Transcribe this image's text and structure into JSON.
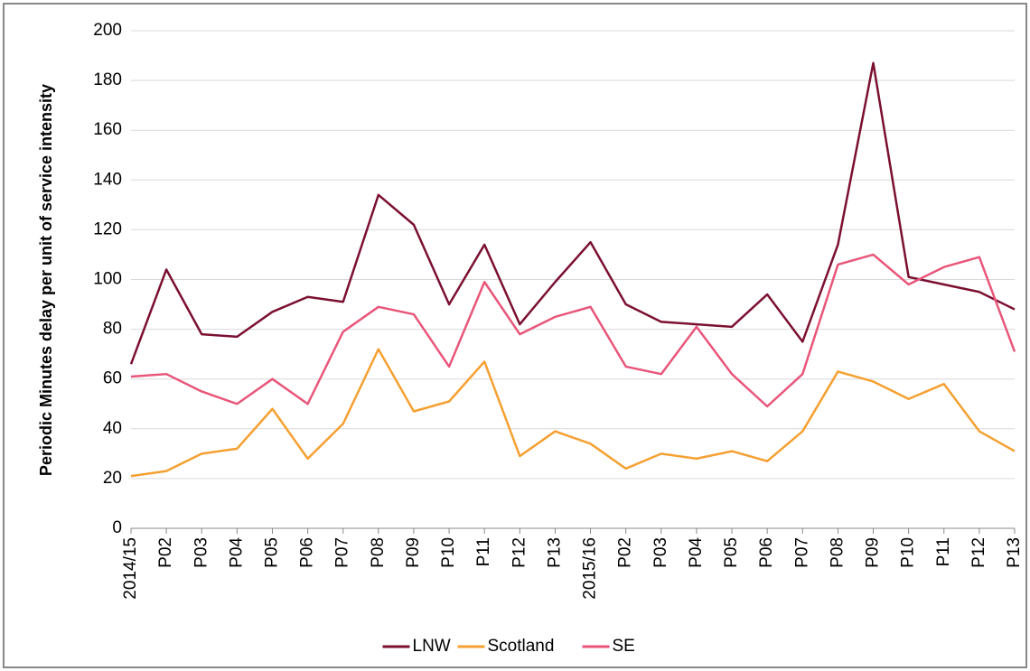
{
  "chart_data": {
    "type": "line",
    "y_label": "Periodic Minutes delay per unit of service intensity",
    "categories": [
      "2014/15",
      "P02",
      "P03",
      "P04",
      "P05",
      "P06",
      "P07",
      "P08",
      "P09",
      "P10",
      "P11",
      "P12",
      "P13",
      "2015/16",
      "P02",
      "P03",
      "P04",
      "P05",
      "P06",
      "P07",
      "P08",
      "P09",
      "P10",
      "P11",
      "P12",
      "P13"
    ],
    "series": [
      {
        "name": "LNW",
        "color": "#7b1030",
        "values": [
          66,
          104,
          78,
          77,
          87,
          93,
          91,
          134,
          122,
          90,
          114,
          82,
          99,
          115,
          90,
          83,
          82,
          81,
          94,
          75,
          114,
          187,
          101,
          98,
          95,
          88
        ]
      },
      {
        "name": "Scotland",
        "color": "#f5a031",
        "values": [
          21,
          23,
          30,
          32,
          48,
          28,
          42,
          72,
          47,
          51,
          67,
          29,
          39,
          34,
          24,
          30,
          28,
          31,
          27,
          39,
          63,
          59,
          52,
          58,
          39,
          31
        ]
      },
      {
        "name": "SE",
        "color": "#e8567a",
        "values": [
          61,
          62,
          55,
          50,
          60,
          50,
          79,
          89,
          86,
          65,
          99,
          78,
          85,
          89,
          65,
          62,
          81,
          62,
          49,
          62,
          106,
          110,
          98,
          105,
          109,
          71
        ]
      }
    ],
    "ylim": [
      0,
      200
    ],
    "yticks": [
      0,
      20,
      40,
      60,
      80,
      100,
      120,
      140,
      160,
      180,
      200
    ],
    "grid": true,
    "legend": "bottom"
  }
}
